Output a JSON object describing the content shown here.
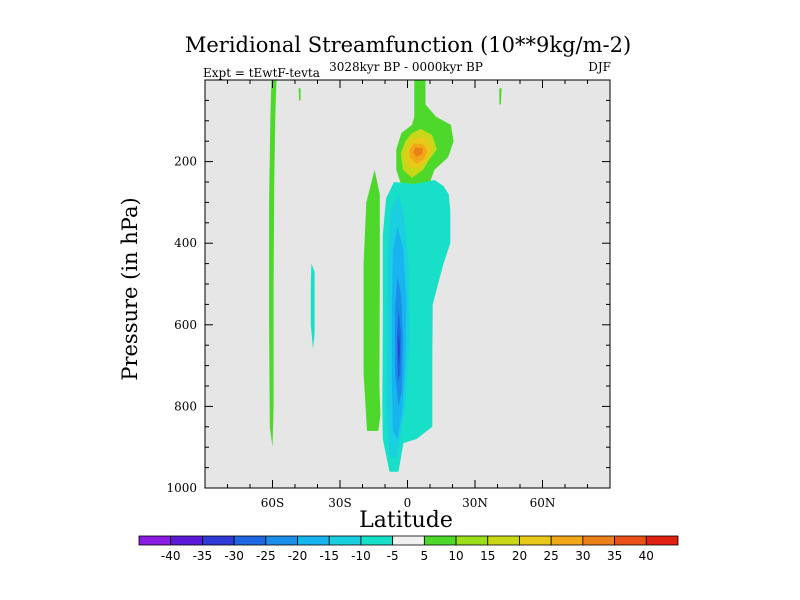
{
  "chart_data": {
    "type": "contour",
    "title": "Meridional Streamfunction (10**9kg/m-2)",
    "subtitle": "3028kyr BP - 0000kyr BP",
    "left_label": "Expt = tEwtF-tevta",
    "right_label": "DJF",
    "xlabel": "Latitude",
    "ylabel": "Pressure (in hPa)",
    "xlim": [
      -90,
      90
    ],
    "ylim": [
      1000,
      0
    ],
    "x_ticks": [
      {
        "value": -60,
        "label": "60S"
      },
      {
        "value": -30,
        "label": "30S"
      },
      {
        "value": 0,
        "label": "0"
      },
      {
        "value": 30,
        "label": "30N"
      },
      {
        "value": 60,
        "label": "60N"
      }
    ],
    "y_ticks": [
      {
        "value": 200,
        "label": "200"
      },
      {
        "value": 400,
        "label": "400"
      },
      {
        "value": 600,
        "label": "600"
      },
      {
        "value": 800,
        "label": "800"
      },
      {
        "value": 1000,
        "label": "1000"
      }
    ],
    "colorbar": {
      "labels": [
        "-40",
        "-35",
        "-30",
        "-25",
        "-20",
        "-15",
        "-10",
        "-5",
        "5",
        "10",
        "15",
        "20",
        "25",
        "30",
        "35",
        "40"
      ],
      "colors": [
        "#8a1be0",
        "#5a1ad8",
        "#2f3ad6",
        "#1f64e0",
        "#1a8ee8",
        "#18b4f0",
        "#1ad0e0",
        "#18e0c8",
        "#f0f0f0",
        "#4ed82c",
        "#9ade1a",
        "#c8d818",
        "#e8c818",
        "#f0a818",
        "#ec8018",
        "#e85018",
        "#e02010"
      ]
    },
    "regions": [
      {
        "color": "#4ed82c",
        "points": [
          [
            -60.5,
            0
          ],
          [
            -58.2,
            0
          ],
          [
            -58.7,
            80
          ],
          [
            -59.2,
            240
          ],
          [
            -59.5,
            500
          ],
          [
            -59.5,
            800
          ],
          [
            -60,
            900
          ],
          [
            -61.2,
            850
          ],
          [
            -61.5,
            600
          ],
          [
            -61.5,
            300
          ],
          [
            -61,
            100
          ]
        ]
      },
      {
        "color": "#4ed82c",
        "points": [
          [
            -48.4,
            20
          ],
          [
            -47.5,
            20
          ],
          [
            -47.5,
            50
          ],
          [
            -48.2,
            50
          ]
        ]
      },
      {
        "color": "#18e0c8",
        "points": [
          [
            -42.7,
            450
          ],
          [
            -41.3,
            470
          ],
          [
            -41.3,
            620
          ],
          [
            -42,
            660
          ],
          [
            -43,
            600
          ],
          [
            -43,
            500
          ]
        ]
      },
      {
        "color": "#4ed82c",
        "points": [
          [
            -14.6,
            220
          ],
          [
            -12.3,
            280
          ],
          [
            -12.3,
            500
          ],
          [
            -12.5,
            750
          ],
          [
            -12,
            820
          ],
          [
            -13,
            860
          ],
          [
            -18,
            860
          ],
          [
            -19.5,
            720
          ],
          [
            -19.5,
            450
          ],
          [
            -18.3,
            300
          ]
        ]
      },
      {
        "color": "#4ed82c",
        "points": [
          [
            3,
            0
          ],
          [
            3,
            90
          ],
          [
            2,
            110
          ],
          [
            -2.7,
            130
          ],
          [
            -5,
            170
          ],
          [
            -5,
            220
          ],
          [
            -2,
            270
          ],
          [
            3,
            300
          ],
          [
            8,
            270
          ],
          [
            10,
            250
          ],
          [
            12,
            220
          ],
          [
            18,
            190
          ],
          [
            20.5,
            150
          ],
          [
            19.3,
            110
          ],
          [
            12.7,
            90
          ],
          [
            8,
            60
          ],
          [
            8,
            0
          ]
        ]
      },
      {
        "color": "#4ed82c",
        "points": [
          [
            40.8,
            20
          ],
          [
            41.8,
            20
          ],
          [
            41.5,
            60
          ],
          [
            40.8,
            60
          ]
        ]
      },
      {
        "color": "#c8d818",
        "points": [
          [
            2,
            130
          ],
          [
            -1,
            150
          ],
          [
            -3,
            180
          ],
          [
            -2,
            220
          ],
          [
            2,
            240
          ],
          [
            7,
            220
          ],
          [
            9,
            200
          ],
          [
            13,
            170
          ],
          [
            11,
            135
          ],
          [
            6,
            120
          ]
        ]
      },
      {
        "color": "#e8c818",
        "points": [
          [
            2,
            145
          ],
          [
            0,
            165
          ],
          [
            -1,
            190
          ],
          [
            1,
            215
          ],
          [
            5,
            215
          ],
          [
            9,
            195
          ],
          [
            11,
            165
          ],
          [
            8,
            140
          ]
        ]
      },
      {
        "color": "#f0a818",
        "points": [
          [
            3,
            155
          ],
          [
            1,
            170
          ],
          [
            1,
            190
          ],
          [
            4,
            205
          ],
          [
            7,
            195
          ],
          [
            9,
            175
          ],
          [
            7,
            158
          ]
        ]
      },
      {
        "color": "#ec8018",
        "points": [
          [
            3.5,
            165
          ],
          [
            2.5,
            178
          ],
          [
            4,
            188
          ],
          [
            6.5,
            182
          ],
          [
            7,
            168
          ]
        ]
      },
      {
        "color": "#18e0c8",
        "points": [
          [
            -6,
            250
          ],
          [
            -9.5,
            290
          ],
          [
            -11,
            380
          ],
          [
            -11,
            600
          ],
          [
            -11.2,
            800
          ],
          [
            -11,
            880
          ],
          [
            -8,
            960
          ],
          [
            -4,
            960
          ],
          [
            -1.8,
            890
          ],
          [
            4,
            880
          ],
          [
            11,
            850
          ],
          [
            11,
            700
          ],
          [
            11.2,
            550
          ],
          [
            16,
            450
          ],
          [
            19,
            400
          ],
          [
            19,
            320
          ],
          [
            18.3,
            280
          ],
          [
            16,
            260
          ],
          [
            12,
            245
          ],
          [
            8,
            250
          ],
          [
            3,
            255
          ]
        ]
      },
      {
        "color": "#1ad0e0",
        "points": [
          [
            -4,
            280
          ],
          [
            -7.5,
            320
          ],
          [
            -9,
            440
          ],
          [
            -9,
            650
          ],
          [
            -9.5,
            800
          ],
          [
            -8,
            920
          ],
          [
            -5,
            930
          ],
          [
            -3,
            870
          ],
          [
            -1,
            800
          ],
          [
            1,
            640
          ],
          [
            0.5,
            460
          ],
          [
            -1.5,
            330
          ]
        ]
      },
      {
        "color": "#18b4f0",
        "points": [
          [
            -4.5,
            360
          ],
          [
            -6.5,
            420
          ],
          [
            -7,
            560
          ],
          [
            -7,
            740
          ],
          [
            -6.5,
            860
          ],
          [
            -4.5,
            880
          ],
          [
            -2.5,
            820
          ],
          [
            -1,
            700
          ],
          [
            -0.5,
            540
          ],
          [
            -2,
            410
          ]
        ]
      },
      {
        "color": "#1a8ee8",
        "points": [
          [
            -4.5,
            480
          ],
          [
            -5.5,
            560
          ],
          [
            -5.5,
            720
          ],
          [
            -4,
            800
          ],
          [
            -2.5,
            760
          ],
          [
            -2,
            640
          ],
          [
            -2.8,
            530
          ]
        ]
      },
      {
        "color": "#1f64e0",
        "points": [
          [
            -4,
            560
          ],
          [
            -4.7,
            640
          ],
          [
            -4.3,
            740
          ],
          [
            -3.2,
            720
          ],
          [
            -3,
            620
          ]
        ]
      },
      {
        "color": "#2f3ad6",
        "points": [
          [
            -3.9,
            620
          ],
          [
            -4.2,
            660
          ],
          [
            -3.8,
            700
          ],
          [
            -3.4,
            660
          ]
        ]
      }
    ]
  }
}
